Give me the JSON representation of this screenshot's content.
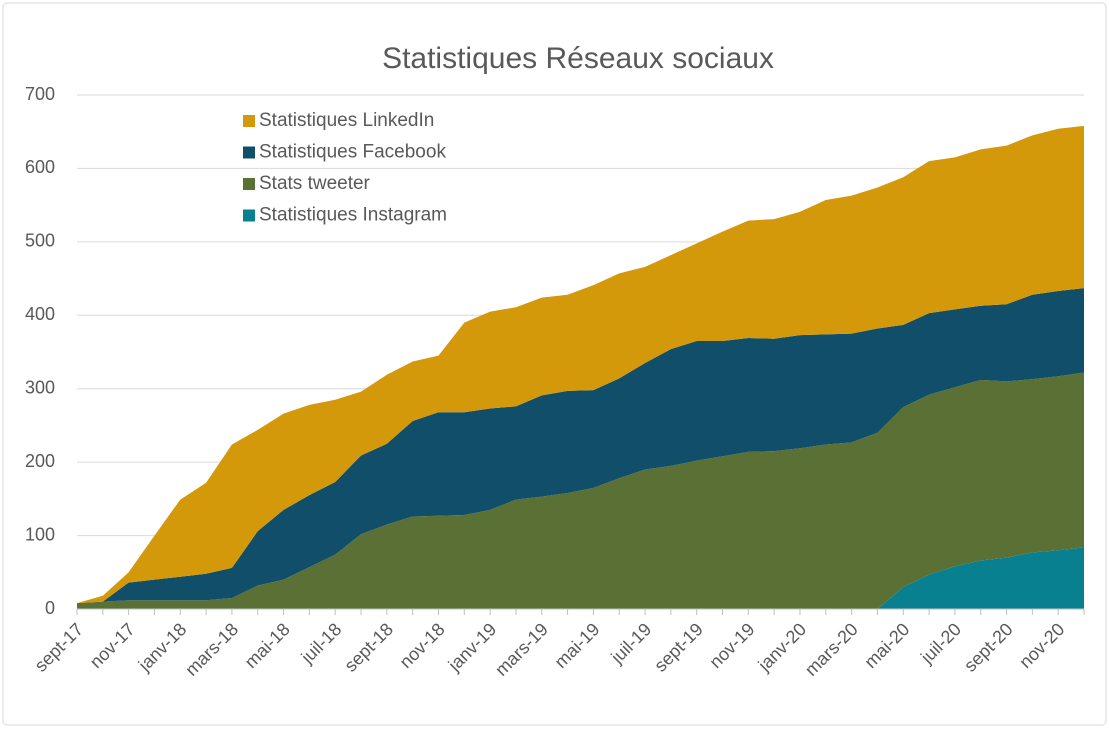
{
  "chart_data": {
    "type": "stacked_area",
    "title": "Statistiques Réseaux sociaux",
    "categories": [
      "sept-17",
      null,
      "nov-17",
      null,
      "janv-18",
      null,
      "mars-18",
      null,
      "mai-18",
      null,
      "juil-18",
      null,
      "sept-18",
      null,
      "nov-18",
      null,
      "janv-19",
      null,
      "mars-19",
      null,
      "mai-19",
      null,
      "juil-19",
      null,
      "sept-19",
      null,
      "nov-19",
      null,
      "janv-20",
      null,
      "mars-20",
      null,
      "mai-20",
      null,
      "juil-20",
      null,
      "sept-20",
      null,
      "nov-20",
      null
    ],
    "series": [
      {
        "name": "Statistiques LinkedIn",
        "color": "#d4980b",
        "values": [
          0,
          8,
          14,
          60,
          105,
          124,
          168,
          138,
          131,
          123,
          112,
          87,
          94,
          81,
          77,
          122,
          132,
          135,
          133,
          131,
          143,
          143,
          131,
          128,
          133,
          149,
          160,
          163,
          168,
          183,
          188,
          192,
          201,
          207,
          207,
          213,
          216,
          217,
          221,
          221
        ]
      },
      {
        "name": "Statistiques Facebook",
        "color": "#114e6a",
        "values": [
          0,
          0,
          24,
          28,
          32,
          36,
          41,
          74,
          95,
          98,
          99,
          107,
          110,
          130,
          141,
          140,
          138,
          127,
          138,
          139,
          133,
          136,
          145,
          159,
          163,
          157,
          155,
          153,
          154,
          150,
          148,
          142,
          112,
          111,
          106,
          101,
          105,
          115,
          116,
          115
        ]
      },
      {
        "name": "Stats tweeter",
        "color": "#5a7035",
        "values": [
          8,
          10,
          12,
          12,
          12,
          12,
          15,
          32,
          40,
          57,
          74,
          102,
          115,
          126,
          127,
          128,
          135,
          149,
          153,
          158,
          165,
          178,
          190,
          195,
          202,
          208,
          214,
          215,
          219,
          224,
          227,
          240,
          245,
          245,
          244,
          246,
          240,
          236,
          237,
          238
        ]
      },
      {
        "name": "Statistiques Instagram",
        "color": "#08808f",
        "values": [
          0,
          0,
          0,
          0,
          0,
          0,
          0,
          0,
          0,
          0,
          0,
          0,
          0,
          0,
          0,
          0,
          0,
          0,
          0,
          0,
          0,
          0,
          0,
          0,
          0,
          0,
          0,
          0,
          0,
          0,
          0,
          0,
          30,
          47,
          58,
          66,
          70,
          77,
          80,
          84
        ]
      }
    ],
    "ylim": [
      0,
      700
    ],
    "yticks": [
      0,
      100,
      200,
      300,
      400,
      500,
      600,
      700
    ],
    "grid": true,
    "legend": "top-left"
  }
}
